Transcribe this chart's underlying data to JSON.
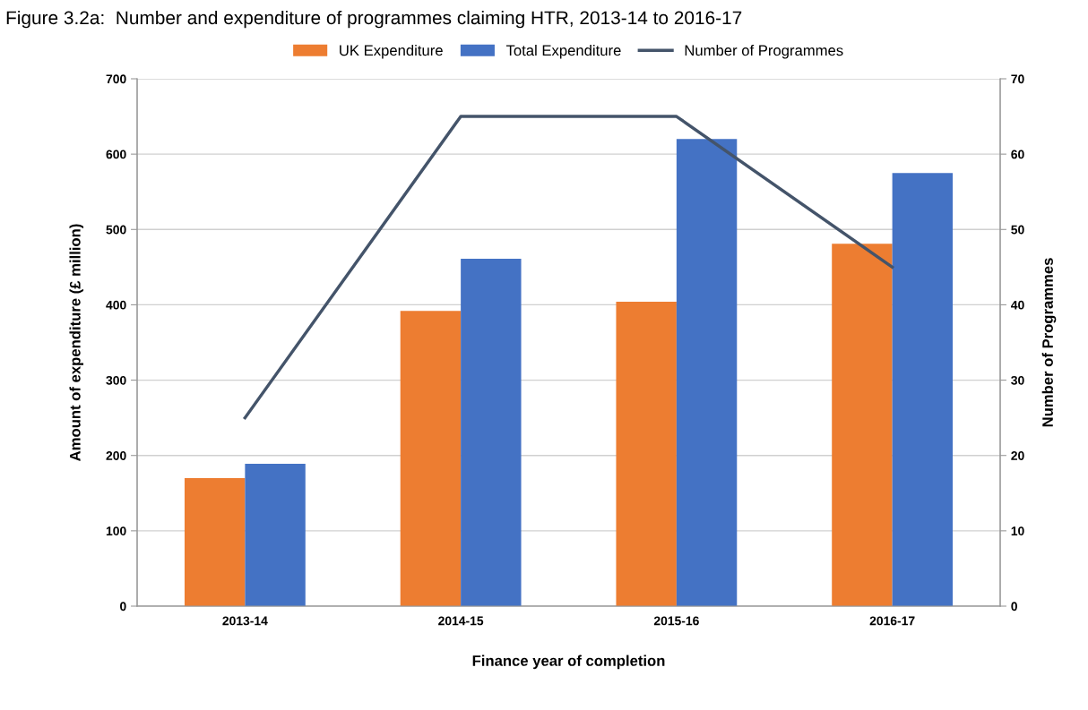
{
  "chart_data": {
    "type": "bar",
    "title": "Figure 3.2a:  Number and expenditure of programmes claiming HTR, 2013-14 to 2016-17",
    "xlabel": "Finance year of completion",
    "ylabel": "Amount of expenditure (£ million)",
    "y2label": "Number of Programmes",
    "categories": [
      "2013-14",
      "2014-15",
      "2015-16",
      "2016-17"
    ],
    "series": [
      {
        "name": "UK Expenditure",
        "color": "#ed7d31",
        "values": [
          170,
          392,
          404,
          481
        ]
      },
      {
        "name": "Total Expenditure",
        "color": "#4472c4",
        "values": [
          189,
          461,
          620,
          575
        ]
      },
      {
        "name": "Number of Programmes",
        "type": "line",
        "axis": "y2",
        "color": "#44546a",
        "values": [
          25,
          65,
          65,
          45
        ]
      }
    ],
    "ylim": [
      0,
      700
    ],
    "yticks": [
      0,
      100,
      200,
      300,
      400,
      500,
      600,
      700
    ],
    "y2lim": [
      0,
      70
    ],
    "y2ticks": [
      0,
      10,
      20,
      30,
      40,
      50,
      60,
      70
    ],
    "grid": "y",
    "legend": "top",
    "marker": "none",
    "line_style": "solid"
  }
}
